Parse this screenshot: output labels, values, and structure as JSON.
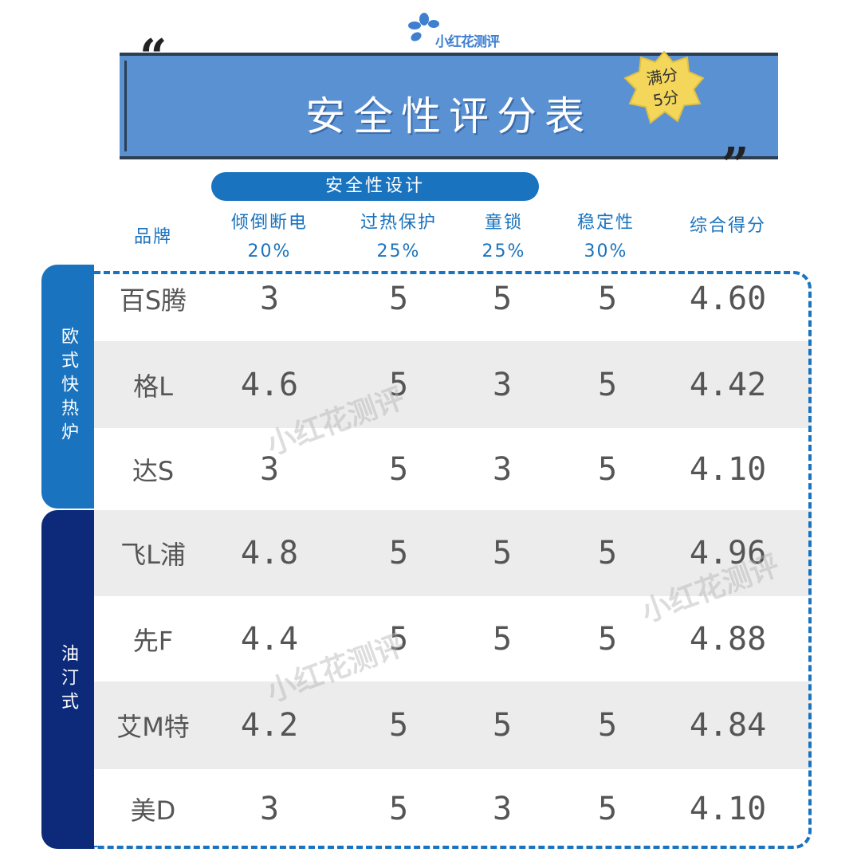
{
  "logo": {
    "text": "小红花测评"
  },
  "header": {
    "title": "安全性评分表",
    "badge": [
      "满分",
      "5分"
    ],
    "quote_open": "“",
    "quote_close": "”"
  },
  "group_header": "安全性设计",
  "columns": [
    {
      "name": "品牌",
      "weight": ""
    },
    {
      "name": "倾倒断电",
      "weight": "20%"
    },
    {
      "name": "过热保护",
      "weight": "25%"
    },
    {
      "name": "童锁",
      "weight": "25%"
    },
    {
      "name": "稳定性",
      "weight": "30%"
    },
    {
      "name": "综合得分",
      "weight": ""
    }
  ],
  "groups": [
    {
      "label": "欧式快热炉",
      "color": "#1a73be"
    },
    {
      "label": "油汀式",
      "color": "#0d2a7a"
    }
  ],
  "rows": [
    [
      "百S腾",
      "3",
      "5",
      "5",
      "5",
      "4.60"
    ],
    [
      "格L",
      "4.6",
      "5",
      "3",
      "5",
      "4.42"
    ],
    [
      "达S",
      "3",
      "5",
      "3",
      "5",
      "4.10"
    ],
    [
      "飞L浦",
      "4.8",
      "5",
      "5",
      "5",
      "4.96"
    ],
    [
      "先F",
      "4.4",
      "5",
      "5",
      "5",
      "4.88"
    ],
    [
      "艾M特",
      "4.2",
      "5",
      "5",
      "5",
      "4.84"
    ],
    [
      "美D",
      "3",
      "5",
      "3",
      "5",
      "4.10"
    ]
  ],
  "watermark": "小红花测评",
  "colors": {
    "primary": "#1a73be",
    "dark": "#0d2a7a",
    "banner": "#5a91d2",
    "badge": "#f3d65a"
  }
}
